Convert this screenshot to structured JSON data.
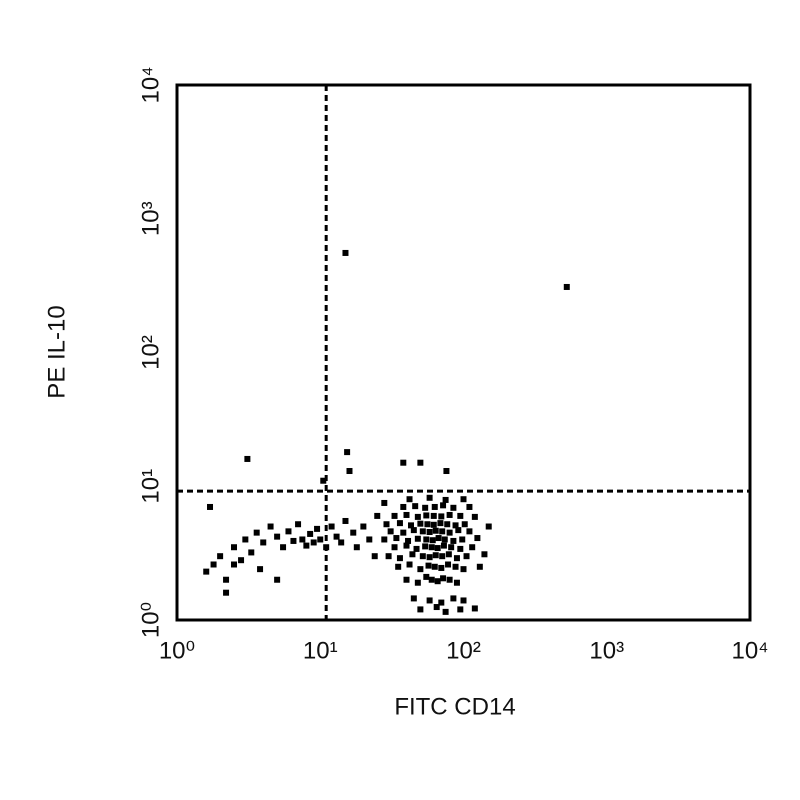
{
  "chart_data": {
    "type": "scatter",
    "xlabel": "FITC CD14",
    "ylabel": "PE IL-10",
    "log_x": true,
    "log_y": true,
    "color": "#000000",
    "xlim": [
      1,
      10000
    ],
    "ylim": [
      1,
      10000
    ],
    "xticks": [
      {
        "value": 1,
        "label": "10⁰"
      },
      {
        "value": 10,
        "label": "10¹"
      },
      {
        "value": 100,
        "label": "10²"
      },
      {
        "value": 1000,
        "label": "10³"
      },
      {
        "value": 10000,
        "label": "10⁴"
      }
    ],
    "yticks": [
      {
        "value": 1,
        "label": "10⁰"
      },
      {
        "value": 10,
        "label": "10¹"
      },
      {
        "value": 100,
        "label": "10²"
      },
      {
        "value": 1000,
        "label": "10³"
      },
      {
        "value": 10000,
        "label": "10⁴"
      }
    ],
    "x_gate": 11,
    "y_gate": 9.2,
    "x": [
      50,
      65,
      75,
      95,
      120,
      45,
      58,
      70,
      85,
      100,
      40,
      48,
      55,
      60,
      66,
      72,
      80,
      90,
      35,
      42,
      50,
      57,
      63,
      70,
      78,
      88,
      100,
      130,
      30,
      36,
      44,
      52,
      58,
      64,
      71,
      79,
      90,
      105,
      140,
      33,
      40,
      47,
      54,
      60,
      66,
      73,
      82,
      95,
      115,
      28,
      34,
      41,
      48,
      55,
      61,
      67,
      74,
      85,
      98,
      125,
      31,
      38,
      45,
      52,
      58,
      64,
      71,
      80,
      92,
      110,
      29,
      36,
      43,
      50,
      56,
      62,
      69,
      77,
      88,
      102,
      150,
      33,
      40,
      48,
      55,
      62,
      70,
      80,
      95,
      120,
      38,
      46,
      54,
      63,
      72,
      85,
      110,
      42,
      58,
      75,
      100,
      20,
      22,
      25,
      18,
      24,
      28,
      17,
      1.6,
      1.8,
      2,
      2.2,
      2.5,
      2.8,
      3,
      3.3,
      3.6,
      4,
      4.5,
      5,
      5.5,
      6,
      6.5,
      7,
      7.5,
      8,
      8.5,
      9,
      9.5,
      10,
      11,
      12,
      13,
      14,
      15,
      2.2,
      3.8,
      1.7,
      5,
      2.5,
      15,
      526,
      3.1,
      15.4,
      38,
      50,
      76,
      10.5,
      16
    ],
    "values": [
      1.2,
      1.25,
      1.15,
      1.2,
      1.22,
      1.45,
      1.4,
      1.35,
      1.45,
      1.4,
      2,
      1.9,
      2.1,
      2,
      1.95,
      2.05,
      2,
      1.9,
      2.5,
      2.6,
      2.4,
      2.55,
      2.5,
      2.45,
      2.6,
      2.5,
      2.4,
      2.5,
      3,
      2.9,
      3.1,
      3,
      2.95,
      3.05,
      3,
      3.1,
      2.9,
      3,
      3.1,
      3.5,
      3.6,
      3.4,
      3.55,
      3.5,
      3.45,
      3.6,
      3.5,
      3.4,
      3.5,
      4,
      4.1,
      3.9,
      4.05,
      4,
      3.95,
      4.1,
      4,
      3.9,
      4,
      4.1,
      4.6,
      4.5,
      4.7,
      4.6,
      4.55,
      4.65,
      4.6,
      4.5,
      4.7,
      4.6,
      5.2,
      5.3,
      5.1,
      5.25,
      5.2,
      5.15,
      5.3,
      5.2,
      5.1,
      5.2,
      5,
      6,
      6.1,
      5.9,
      6.05,
      6,
      5.95,
      6.1,
      6,
      5.9,
      7,
      7.1,
      6.9,
      7,
      7.2,
      6.9,
      7,
      8,
      8.2,
      7.9,
      8,
      5,
      4,
      6,
      3.5,
      3,
      7.5,
      4.5,
      2.3,
      2.6,
      3,
      2,
      3.5,
      2.8,
      4,
      3.2,
      4.5,
      3.8,
      5,
      4.2,
      3.5,
      4.6,
      3.9,
      5.2,
      4,
      3.6,
      4.4,
      3.8,
      4.8,
      4,
      3.5,
      5,
      4.2,
      3.8,
      5.5,
      1.6,
      2.4,
      7,
      2,
      2.6,
      555,
      309,
      16,
      18,
      15,
      15,
      13,
      11,
      13
    ]
  }
}
